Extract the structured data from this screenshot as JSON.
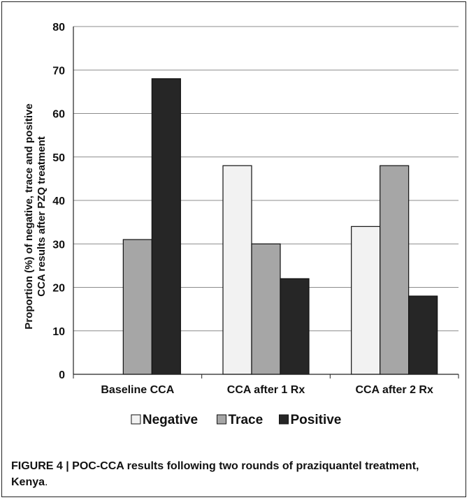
{
  "chart_data": {
    "type": "bar",
    "title": "",
    "xlabel": "",
    "ylabel_line1": "Proportion (%) of negative, trace and positive",
    "ylabel_line2": "CCA results after PZQ treatment",
    "ylim": [
      0,
      80
    ],
    "yticks": [
      0,
      10,
      20,
      30,
      40,
      50,
      60,
      70,
      80
    ],
    "grid": true,
    "legend_position": "bottom",
    "categories": [
      "Baseline CCA",
      "CCA after 1 Rx",
      "CCA after 2 Rx"
    ],
    "series": [
      {
        "name": "Negative",
        "color": "#f2f2f2",
        "values": [
          0,
          48,
          34
        ]
      },
      {
        "name": "Trace",
        "color": "#a6a6a6",
        "values": [
          31,
          30,
          48
        ]
      },
      {
        "name": "Positive",
        "color": "#262626",
        "values": [
          68,
          22,
          18
        ]
      }
    ]
  },
  "caption": {
    "label": "FIGURE 4 | ",
    "text": "POC-CCA results following two rounds of praziquantel treatment, Kenya",
    "end": "."
  }
}
